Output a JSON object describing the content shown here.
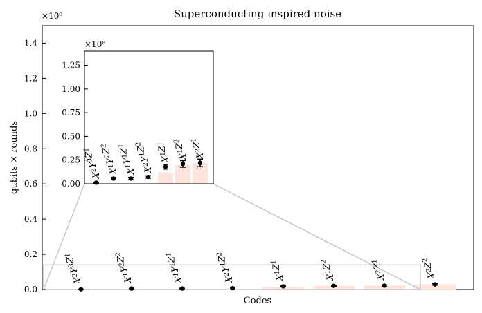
{
  "chart_data": {
    "title": "Superconducting inspired noise",
    "type": "bar",
    "xlabel": "Codes",
    "ylabel": "qubits × rounds",
    "y_multiplier": "×10⁹",
    "ylim": [
      0,
      1.5
    ],
    "yticks": [
      "0.0",
      "0.2",
      "0.4",
      "0.6",
      "0.8",
      "1.0",
      "1.2",
      "1.4"
    ],
    "codes": [
      {
        "base": "X",
        "e1": "2",
        "m1": "Y",
        "e2": "3",
        "m2": "Z",
        "e3": "1"
      },
      {
        "base": "X",
        "e1": "1",
        "m1": "Y",
        "e2": "2",
        "m2": "Z",
        "e3": "2"
      },
      {
        "base": "X",
        "e1": "1",
        "m1": "Y",
        "e2": "1",
        "m2": "Z",
        "e3": "1"
      },
      {
        "base": "X",
        "e1": "2",
        "m1": "Y",
        "e2": "1",
        "m2": "Z",
        "e3": "2"
      },
      {
        "base": "X",
        "e1": "1",
        "m1": "Z",
        "e2": "1",
        "m2": "",
        "e3": ""
      },
      {
        "base": "X",
        "e1": "1",
        "m1": "Z",
        "e2": "2",
        "m2": "",
        "e3": ""
      },
      {
        "base": "X",
        "e1": "2",
        "m1": "Z",
        "e2": "1",
        "m2": "",
        "e3": ""
      },
      {
        "base": "X",
        "e1": "2",
        "m1": "Z",
        "e2": "2",
        "m2": "",
        "e3": ""
      }
    ],
    "values": [
      0.0012,
      0.0055,
      0.0055,
      0.0072,
      0.018,
      0.021,
      0.022,
      0.029
    ],
    "errors": [
      0.0004,
      0.0013,
      0.0013,
      0.0012,
      0.0025,
      0.0035,
      0.004,
      0.004
    ],
    "bar_heights": [
      0.0,
      0.0,
      0.0,
      0.0,
      0.012,
      0.02,
      0.022,
      0.03
    ],
    "bar_color": "#fde4dc",
    "marker_color": "#000000",
    "inset": {
      "y_multiplier": "×10⁸",
      "ylim": [
        0,
        1.4
      ],
      "yticks": [
        "0.00",
        "0.25",
        "0.50",
        "0.75",
        "1.00",
        "1.25"
      ],
      "codes_count": 7,
      "values": [
        0.012,
        0.055,
        0.055,
        0.072,
        0.18,
        0.21,
        0.22
      ],
      "errors": [
        0.004,
        0.013,
        0.013,
        0.012,
        0.025,
        0.035,
        0.04
      ],
      "bar_heights": [
        0.0,
        0.0,
        0.0,
        0.0,
        0.12,
        0.2,
        0.22
      ],
      "zoom_region_ylim": [
        0,
        0.14
      ]
    }
  }
}
